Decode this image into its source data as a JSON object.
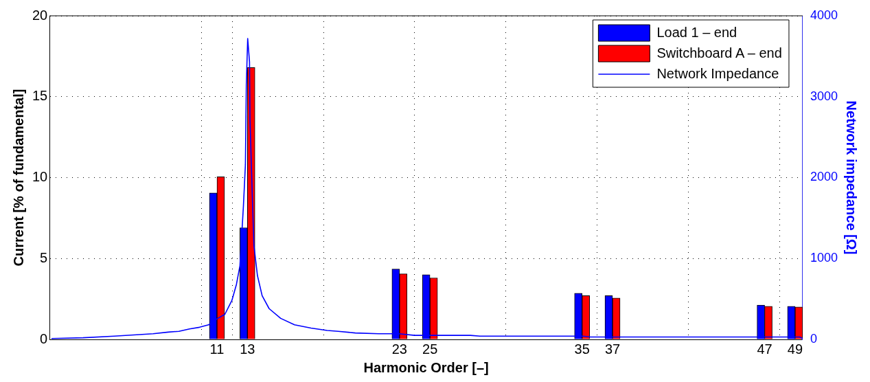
{
  "chart_data": {
    "type": "bar",
    "x": [
      11,
      13,
      23,
      25,
      35,
      37,
      47,
      49
    ],
    "xlabel": "Harmonic Order [–]",
    "ylabel": "Current [% of fundamental]",
    "y2label": "Network impedance [Ω]",
    "xlim": [
      0,
      49.5
    ],
    "xticks": [
      11,
      13,
      23,
      25,
      35,
      37,
      47,
      49
    ],
    "ylim": [
      0,
      20
    ],
    "yticks": [
      0,
      5,
      10,
      15,
      20
    ],
    "y2lim": [
      0,
      4000
    ],
    "y2ticks": [
      0,
      1000,
      2000,
      3000,
      4000
    ],
    "grid": true,
    "legend": "top right",
    "series": [
      {
        "name": "Load 1 – end",
        "color": "#0000ff",
        "values": [
          9.05,
          6.9,
          4.35,
          4.0,
          2.85,
          2.7,
          2.12,
          2.05
        ]
      },
      {
        "name": "Switchboard A – end",
        "color": "#ff0000",
        "values": [
          10.05,
          16.8,
          4.05,
          3.8,
          2.7,
          2.55,
          2.05,
          2.0
        ]
      },
      {
        "name": "Network Impedance",
        "type": "line",
        "axis": "y2",
        "color": "#0000ff",
        "x": [
          0.12,
          2.2,
          4.25,
          5.9,
          6.8,
          7.8,
          8.5,
          9.2,
          9.85,
          10.45,
          11.05,
          11.52,
          11.98,
          12.28,
          12.51,
          12.74,
          12.87,
          12.93,
          13.02,
          13.14,
          13.17,
          13.33,
          13.43,
          13.66,
          13.97,
          14.43,
          15.19,
          16.1,
          17.18,
          18.25,
          18.97,
          20.09,
          21.63,
          22.96,
          23.99,
          27.66,
          28.29,
          35.05,
          35.55,
          49.3,
          49.5
        ],
        "values": [
          10,
          20,
          40,
          60,
          70,
          90,
          100,
          130,
          150,
          180,
          260,
          310,
          480,
          680,
          910,
          1650,
          2160,
          3150,
          3720,
          3430,
          2720,
          1730,
          1160,
          790,
          540,
          380,
          260,
          180,
          140,
          110,
          100,
          80,
          70,
          70,
          50,
          50,
          40,
          40,
          30,
          30,
          10
        ]
      }
    ]
  }
}
